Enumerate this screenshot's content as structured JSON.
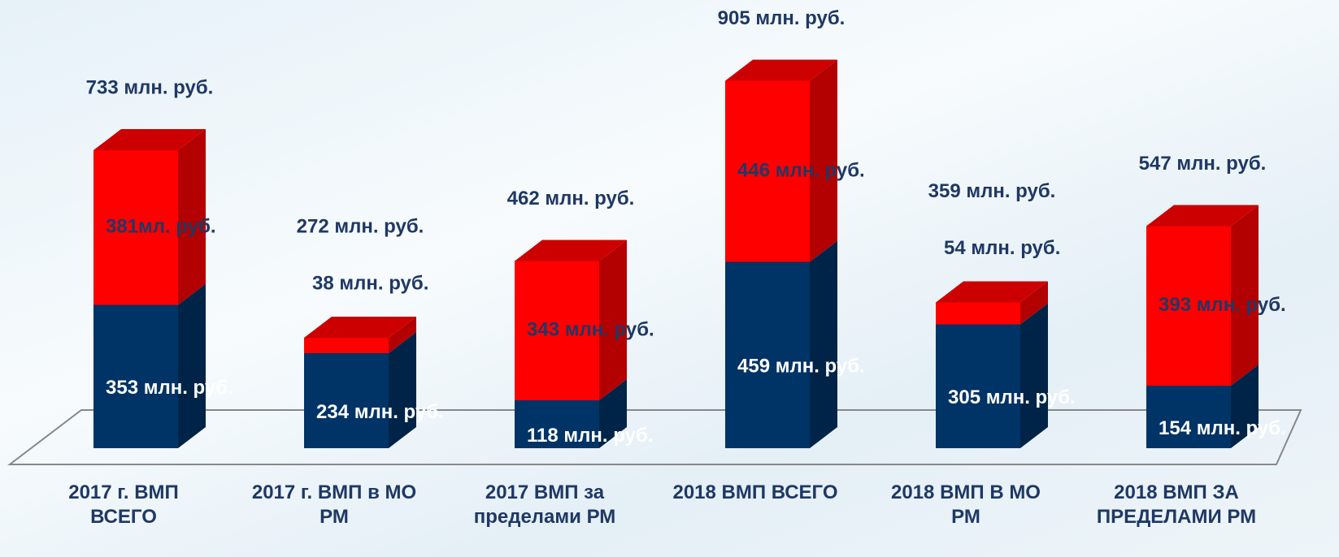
{
  "chart_data": {
    "type": "bar3d-stacked",
    "categories": [
      "2017 г. ВМП ВСЕГО",
      "2017 г. ВМП в МО РМ",
      "2017 ВМП за пределами РМ",
      "2018 ВМП ВСЕГО",
      "2018 ВМП В МО РМ",
      "2018 ВМП ЗА ПРЕДЕЛАМИ РМ"
    ],
    "series": [
      {
        "color": "#003366",
        "values": [
          353,
          234,
          118,
          459,
          305,
          154
        ],
        "value_labels": [
          "353 млн. руб.",
          "234 млн. руб.",
          "118 млн. руб.",
          "459 млн. руб.",
          "305 млн. руб.",
          "154 млн. руб."
        ]
      },
      {
        "color": "#ff0000",
        "values": [
          381,
          38,
          343,
          446,
          54,
          393
        ],
        "value_labels": [
          "381мл. руб.",
          "38 млн. руб.",
          "343 млн. руб.",
          "446 млн. руб.",
          "54 млн. руб.",
          "393 млн. руб."
        ]
      }
    ],
    "total_labels": [
      "733 млн. руб.",
      "272 млн. руб.",
      "462 млн. руб.",
      "905 млн. руб.",
      "359 млн. руб.",
      "547 млн. руб."
    ]
  }
}
